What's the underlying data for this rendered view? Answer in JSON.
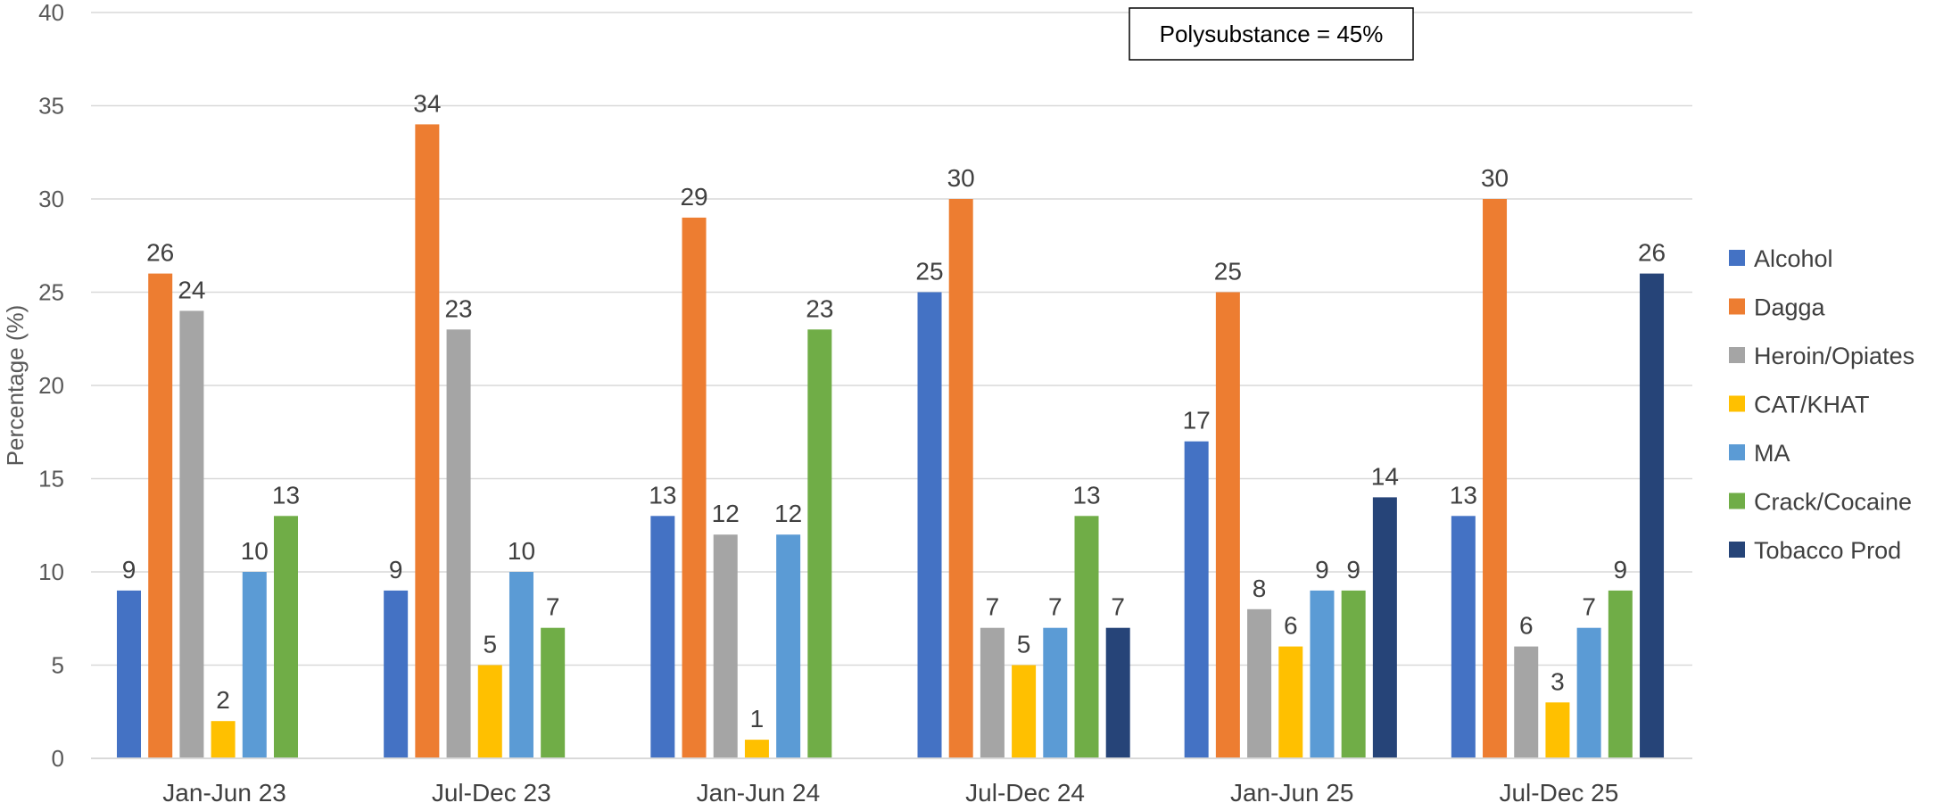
{
  "chart_data": {
    "type": "bar",
    "categories": [
      "Jan-Jun 23",
      "Jul-Dec 23",
      "Jan-Jun 24",
      "Jul-Dec 24",
      "Jan-Jun 25",
      "Jul-Dec 25"
    ],
    "series": [
      {
        "name": "Alcohol",
        "color": "#4472C4",
        "values": [
          9,
          9,
          13,
          25,
          17,
          13
        ]
      },
      {
        "name": "Dagga",
        "color": "#ED7D31",
        "values": [
          26,
          34,
          29,
          30,
          25,
          30
        ]
      },
      {
        "name": "Heroin/Opiates",
        "color": "#A5A5A5",
        "values": [
          24,
          23,
          12,
          7,
          8,
          6
        ]
      },
      {
        "name": "CAT/KHAT",
        "color": "#FFC000",
        "values": [
          2,
          5,
          1,
          5,
          6,
          3
        ]
      },
      {
        "name": "MA",
        "color": "#5B9BD5",
        "values": [
          10,
          10,
          12,
          7,
          9,
          7
        ]
      },
      {
        "name": "Crack/Cocaine",
        "color": "#70AD47",
        "values": [
          13,
          7,
          23,
          13,
          9,
          9
        ]
      },
      {
        "name": "Tobacco Prod",
        "color": "#264478",
        "values": [
          null,
          null,
          null,
          7,
          14,
          26
        ]
      }
    ],
    "ylabel": "Percentage (%)",
    "xlabel": "",
    "ylim": [
      0,
      40
    ],
    "yticks": [
      0,
      5,
      10,
      15,
      20,
      25,
      30,
      35,
      40
    ],
    "grid": true,
    "legend_position": "right",
    "annotation": "Polysubstance = 45%"
  }
}
